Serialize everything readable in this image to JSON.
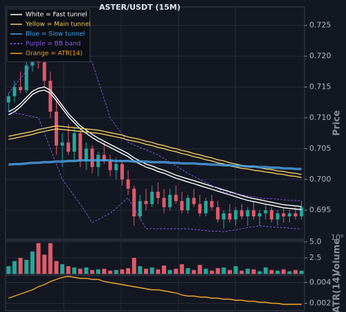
{
  "chart_data": [
    {
      "type": "candlestick",
      "title": "ASTER/USDT (15M)",
      "ylabel": "Price",
      "ylim": [
        0.6903,
        0.728
      ],
      "yticks": [
        0.695,
        {
          "value": 0.7,
          "label": "0.700"
        },
        0.705,
        {
          "value": 0.71,
          "label": "0.710"
        },
        0.715,
        {
          "value": 0.72,
          "label": "0.720"
        },
        0.725
      ],
      "grid": true,
      "legend": "upper left",
      "up_color": "#26a69a",
      "down_color": "#e05a6b",
      "open": [
        0.7125,
        0.7135,
        0.715,
        0.7145,
        0.7185,
        0.72,
        0.719,
        0.716,
        0.711,
        0.7055,
        0.706,
        0.7045,
        0.7075,
        0.703,
        0.705,
        0.702,
        0.704,
        0.703,
        0.7015,
        0.7025,
        0.7,
        0.6985,
        0.694,
        0.6965,
        0.696,
        0.698,
        0.697,
        0.6955,
        0.6975,
        0.6965,
        0.695,
        0.697,
        0.696,
        0.6945,
        0.6965,
        0.6955,
        0.6935,
        0.6945,
        0.6935,
        0.695,
        0.694,
        0.695,
        0.694,
        0.6945,
        0.695,
        0.6935,
        0.6945,
        0.694,
        0.6945,
        0.694
      ],
      "high": [
        0.714,
        0.716,
        0.7175,
        0.719,
        0.7215,
        0.7225,
        0.7215,
        0.7175,
        0.713,
        0.7075,
        0.709,
        0.7085,
        0.708,
        0.706,
        0.7055,
        0.7045,
        0.706,
        0.704,
        0.7035,
        0.703,
        0.7015,
        0.699,
        0.6975,
        0.6985,
        0.699,
        0.6995,
        0.6985,
        0.6985,
        0.699,
        0.698,
        0.6975,
        0.6985,
        0.6975,
        0.697,
        0.6975,
        0.6965,
        0.695,
        0.696,
        0.6955,
        0.696,
        0.6955,
        0.6965,
        0.695,
        0.696,
        0.6955,
        0.695,
        0.6955,
        0.695,
        0.6955,
        0.6965
      ],
      "low": [
        0.711,
        0.7125,
        0.714,
        0.714,
        0.7175,
        0.718,
        0.715,
        0.71,
        0.704,
        0.702,
        0.704,
        0.703,
        0.702,
        0.7015,
        0.701,
        0.7005,
        0.7025,
        0.7005,
        0.7,
        0.699,
        0.6975,
        0.6925,
        0.6935,
        0.695,
        0.6955,
        0.696,
        0.6945,
        0.695,
        0.696,
        0.6945,
        0.6945,
        0.6955,
        0.694,
        0.694,
        0.695,
        0.693,
        0.692,
        0.693,
        0.6925,
        0.6935,
        0.6925,
        0.6935,
        0.6925,
        0.6935,
        0.693,
        0.6925,
        0.693,
        0.693,
        0.6935,
        0.6935
      ],
      "close": [
        0.7135,
        0.715,
        0.7145,
        0.7185,
        0.72,
        0.719,
        0.716,
        0.711,
        0.7055,
        0.706,
        0.7045,
        0.7075,
        0.703,
        0.705,
        0.702,
        0.704,
        0.703,
        0.7015,
        0.7025,
        0.7,
        0.6985,
        0.694,
        0.6965,
        0.696,
        0.698,
        0.697,
        0.6955,
        0.6975,
        0.6965,
        0.695,
        0.697,
        0.696,
        0.6945,
        0.6965,
        0.6955,
        0.6935,
        0.6945,
        0.6935,
        0.695,
        0.694,
        0.695,
        0.694,
        0.6945,
        0.695,
        0.6935,
        0.6945,
        0.694,
        0.6945,
        0.694,
        0.6955
      ],
      "series": [
        {
          "name": "White = Fast tunnel",
          "color": "#ffffff",
          "values": [
            0.7105,
            0.711,
            0.7118,
            0.7128,
            0.7138,
            0.7143,
            0.7145,
            0.714,
            0.7128,
            0.7115,
            0.7102,
            0.7092,
            0.7082,
            0.7075,
            0.7068,
            0.7062,
            0.7057,
            0.7052,
            0.7047,
            0.7042,
            0.7037,
            0.703,
            0.7025,
            0.702,
            0.7017,
            0.7013,
            0.701,
            0.7006,
            0.7002,
            0.6999,
            0.6996,
            0.6993,
            0.699,
            0.6987,
            0.6984,
            0.6981,
            0.6978,
            0.6975,
            0.6972,
            0.6969,
            0.6966,
            0.6964,
            0.6962,
            0.696,
            0.6958,
            0.6956,
            0.6954,
            0.6953,
            0.6952,
            0.6951
          ]
        },
        {
          "color": "#ffffff",
          "values": [
            0.711,
            0.7115,
            0.7123,
            0.7133,
            0.7143,
            0.7148,
            0.715,
            0.7145,
            0.7133,
            0.712,
            0.7107,
            0.7097,
            0.7087,
            0.708,
            0.7073,
            0.7067,
            0.7062,
            0.7057,
            0.7052,
            0.7047,
            0.7042,
            0.7035,
            0.703,
            0.7025,
            0.7022,
            0.7018,
            0.7015,
            0.7011,
            0.7007,
            0.7004,
            0.7001,
            0.6998,
            0.6995,
            0.6992,
            0.6989,
            0.6986,
            0.6983,
            0.698,
            0.6977,
            0.6974,
            0.6971,
            0.6969,
            0.6967,
            0.6965,
            0.6963,
            0.6961,
            0.6959,
            0.6958,
            0.6957,
            0.6956
          ]
        },
        {
          "name": "Yellow = Main tunnel",
          "color": "#f2cc5a",
          "values": [
            0.7065,
            0.7067,
            0.7069,
            0.7071,
            0.7073,
            0.7076,
            0.7078,
            0.708,
            0.7082,
            0.7081,
            0.708,
            0.7079,
            0.7078,
            0.7077,
            0.7076,
            0.7075,
            0.7073,
            0.7071,
            0.7069,
            0.7067,
            0.7064,
            0.7062,
            0.706,
            0.7057,
            0.7055,
            0.7052,
            0.705,
            0.7047,
            0.7045,
            0.7042,
            0.704,
            0.7037,
            0.7035,
            0.7032,
            0.703,
            0.7027,
            0.7025,
            0.7022,
            0.702,
            0.7018,
            0.7017,
            0.7015,
            0.7014,
            0.7012,
            0.7011,
            0.7009,
            0.7008,
            0.7006,
            0.7005,
            0.7003
          ]
        },
        {
          "color": "#f2cc5a",
          "values": [
            0.707,
            0.7072,
            0.7074,
            0.7076,
            0.7078,
            0.7081,
            0.7083,
            0.7085,
            0.7087,
            0.7086,
            0.7085,
            0.7084,
            0.7083,
            0.7082,
            0.7081,
            0.708,
            0.7078,
            0.7076,
            0.7074,
            0.7072,
            0.7069,
            0.7067,
            0.7065,
            0.7062,
            0.706,
            0.7057,
            0.7055,
            0.7052,
            0.705,
            0.7047,
            0.7045,
            0.7042,
            0.704,
            0.7037,
            0.7035,
            0.7032,
            0.703,
            0.7027,
            0.7025,
            0.7023,
            0.7022,
            0.702,
            0.7019,
            0.7017,
            0.7016,
            0.7014,
            0.7013,
            0.7011,
            0.701,
            0.7008
          ]
        },
        {
          "name": "Blue = Slow tunnel",
          "color": "#4aa3e8",
          "values": [
            0.7023,
            0.7024,
            0.7024,
            0.7025,
            0.7026,
            0.7026,
            0.7027,
            0.7027,
            0.7028,
            0.7028,
            0.7029,
            0.7029,
            0.703,
            0.703,
            0.703,
            0.703,
            0.703,
            0.703,
            0.7029,
            0.7029,
            0.7029,
            0.7028,
            0.7028,
            0.7028,
            0.7027,
            0.7027,
            0.7027,
            0.7026,
            0.7026,
            0.7025,
            0.7025,
            0.7025,
            0.7024,
            0.7024,
            0.7023,
            0.7023,
            0.7022,
            0.7022,
            0.7021,
            0.7021,
            0.702,
            0.702,
            0.7019,
            0.7019,
            0.7018,
            0.7018,
            0.7017,
            0.7017,
            0.7016,
            0.7016
          ]
        },
        {
          "color": "#4aa3e8",
          "values": [
            0.7025,
            0.7026,
            0.7026,
            0.7027,
            0.7028,
            0.7028,
            0.7029,
            0.7029,
            0.703,
            0.703,
            0.7031,
            0.7031,
            0.7032,
            0.7032,
            0.7032,
            0.7032,
            0.7032,
            0.7032,
            0.7031,
            0.7031,
            0.7031,
            0.703,
            0.703,
            0.703,
            0.7029,
            0.7029,
            0.7029,
            0.7028,
            0.7028,
            0.7027,
            0.7027,
            0.7027,
            0.7026,
            0.7026,
            0.7025,
            0.7025,
            0.7024,
            0.7024,
            0.7023,
            0.7023,
            0.7022,
            0.7022,
            0.7021,
            0.7021,
            0.702,
            0.702,
            0.7019,
            0.7019,
            0.7018,
            0.7018
          ]
        },
        {
          "name": "Purple = BB band",
          "color": "#8a5cf0",
          "dashed": true,
          "values": [
            0.714,
            0.7152,
            0.7164,
            0.7176,
            0.7188,
            0.72,
            0.7205,
            0.721,
            0.7215,
            0.722,
            0.7214,
            0.7208,
            0.7202,
            0.7196,
            0.719,
            0.716,
            0.713,
            0.71,
            0.7087,
            0.7073,
            0.706,
            0.7056,
            0.7052,
            0.7048,
            0.7044,
            0.704,
            0.7034,
            0.7028,
            0.7022,
            0.7016,
            0.701,
            0.7005,
            0.7,
            0.6995,
            0.699,
            0.6985,
            0.698,
            0.6978,
            0.6977,
            0.6975,
            0.6973,
            0.6972,
            0.697,
            0.6969,
            0.6969,
            0.6968,
            0.6967,
            0.6966,
            0.6966,
            0.6965
          ]
        },
        {
          "color": "#8a5cf0",
          "dashed": true,
          "values": [
            0.711,
            0.7108,
            0.7106,
            0.7104,
            0.7102,
            0.71,
            0.7075,
            0.705,
            0.7025,
            0.7,
            0.6987,
            0.6973,
            0.696,
            0.6945,
            0.693,
            0.6935,
            0.694,
            0.6945,
            0.6953,
            0.6962,
            0.697,
            0.6953,
            0.6937,
            0.692,
            0.692,
            0.692,
            0.692,
            0.692,
            0.692,
            0.692,
            0.692,
            0.6919,
            0.6918,
            0.6917,
            0.6916,
            0.6916,
            0.6915,
            0.6917,
            0.6918,
            0.692,
            0.6922,
            0.6923,
            0.6925,
            0.6924,
            0.6923,
            0.6922,
            0.6922,
            0.6921,
            0.692,
            0.692
          ]
        },
        {
          "name": "Orange = ATR(14)",
          "color": "#f5a623",
          "values": []
        }
      ]
    },
    {
      "type": "bar",
      "ylabel": "Volume",
      "offset_label": "10⁶",
      "ylim": [
        0,
        5.2
      ],
      "yticks": [
        {
          "value": 2.5,
          "label": "2.5"
        },
        {
          "value": 5,
          "label": "5.0"
        }
      ],
      "grid": true,
      "values": [
        1.2,
        2.0,
        2.5,
        2.2,
        3.5,
        4.8,
        3.0,
        4.8,
        2.0,
        1.5,
        1.2,
        1.0,
        0.8,
        1.0,
        0.6,
        0.7,
        0.8,
        0.5,
        0.6,
        0.7,
        0.9,
        2.5,
        1.2,
        0.8,
        1.0,
        0.7,
        1.3,
        0.6,
        0.8,
        1.5,
        0.9,
        0.6,
        1.4,
        0.8,
        0.5,
        0.9,
        1.0,
        0.6,
        1.2,
        0.5,
        0.8,
        0.7,
        0.4,
        1.0,
        0.6,
        0.5,
        0.7,
        0.4,
        0.6,
        0.5
      ]
    },
    {
      "type": "line",
      "ylabel": "ATR(14)",
      "ylim": [
        0.0013,
        0.0047
      ],
      "yticks": [
        0.002,
        0.004
      ],
      "grid": true,
      "series": [
        {
          "color": "#f5a623",
          "values": [
            0.0025,
            0.0027,
            0.0029,
            0.0031,
            0.0033,
            0.0036,
            0.0038,
            0.0041,
            0.0043,
            0.0045,
            0.0046,
            0.0045,
            0.0044,
            0.0044,
            0.0043,
            0.0043,
            0.0041,
            0.004,
            0.0039,
            0.0038,
            0.0037,
            0.0036,
            0.0035,
            0.0034,
            0.0033,
            0.0033,
            0.0032,
            0.0031,
            0.003,
            0.0028,
            0.0027,
            0.0027,
            0.0026,
            0.0026,
            0.0025,
            0.0025,
            0.0024,
            0.0024,
            0.0023,
            0.0023,
            0.0022,
            0.0022,
            0.0021,
            0.0021,
            0.002,
            0.002,
            0.0019,
            0.0019,
            0.0019,
            0.0019
          ]
        }
      ]
    }
  ]
}
